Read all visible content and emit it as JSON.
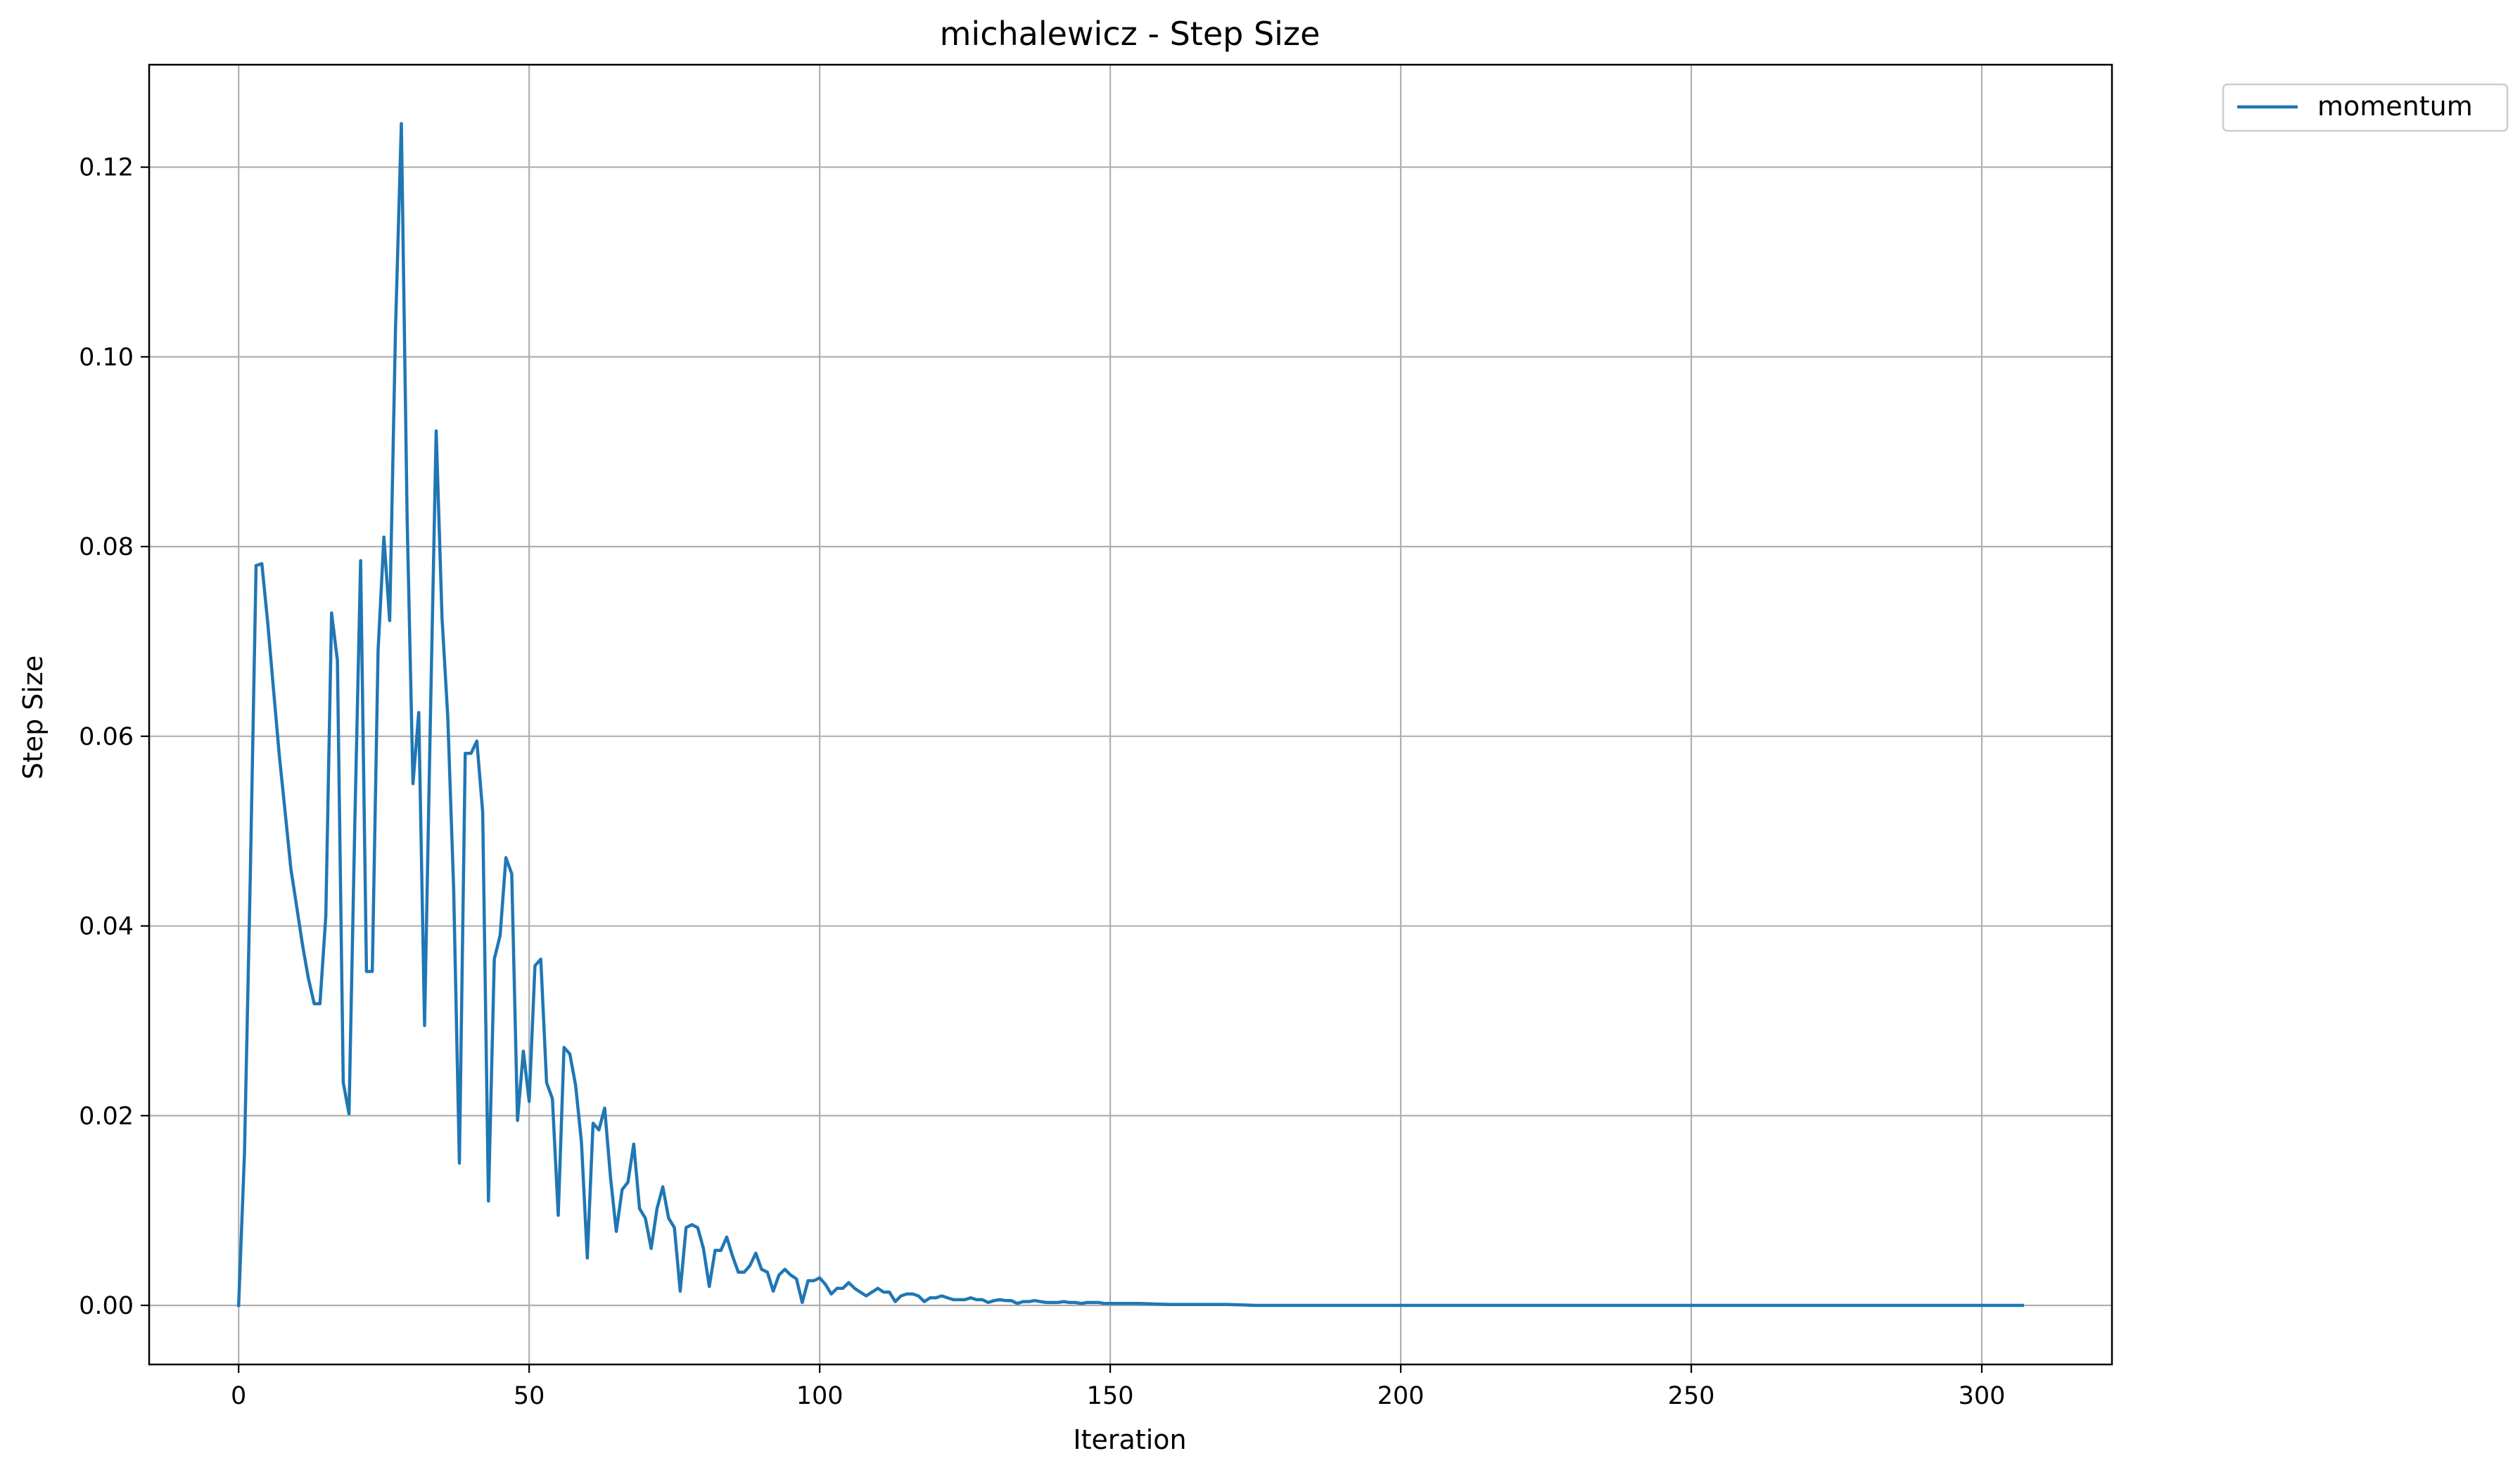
{
  "chart_data": {
    "type": "line",
    "title": "michalewicz - Step Size",
    "xlabel": "Iteration",
    "ylabel": "Step Size",
    "xlim": [
      -15.4,
      322.4
    ],
    "ylim": [
      -0.00623,
      0.1308
    ],
    "xticks": [
      0,
      50,
      100,
      150,
      200,
      250,
      300
    ],
    "xtick_labels": [
      "0",
      "50",
      "100",
      "150",
      "200",
      "250",
      "300"
    ],
    "yticks": [
      0.0,
      0.02,
      0.04,
      0.06,
      0.08,
      0.1,
      0.12
    ],
    "ytick_labels": [
      "0.00",
      "0.02",
      "0.04",
      "0.06",
      "0.08",
      "0.10",
      "0.12"
    ],
    "grid": true,
    "legend": {
      "placement": "outside-top-right",
      "entries": [
        "momentum"
      ]
    },
    "series": [
      {
        "name": "momentum",
        "color": "#1f77b4",
        "x": [
          0,
          1,
          2,
          3,
          4,
          5,
          6,
          7,
          8,
          9,
          10,
          11,
          12,
          13,
          14,
          15,
          16,
          17,
          18,
          19,
          20,
          21,
          22,
          23,
          24,
          25,
          26,
          27,
          28,
          29,
          30,
          31,
          32,
          33,
          34,
          35,
          36,
          37,
          38,
          39,
          40,
          41,
          42,
          43,
          44,
          45,
          46,
          47,
          48,
          49,
          50,
          51,
          52,
          53,
          54,
          55,
          56,
          57,
          58,
          59,
          60,
          61,
          62,
          63,
          64,
          65,
          66,
          67,
          68,
          69,
          70,
          71,
          72,
          73,
          74,
          75,
          76,
          77,
          78,
          79,
          80,
          81,
          82,
          83,
          84,
          85,
          86,
          87,
          88,
          89,
          90,
          91,
          92,
          93,
          94,
          95,
          96,
          97,
          98,
          99,
          100,
          101,
          102,
          103,
          104,
          105,
          106,
          107,
          108,
          109,
          110,
          111,
          112,
          113,
          114,
          115,
          116,
          117,
          118,
          119,
          120,
          121,
          122,
          123,
          124,
          125,
          126,
          127,
          128,
          129,
          130,
          131,
          132,
          133,
          134,
          135,
          136,
          137,
          138,
          139,
          140,
          141,
          142,
          143,
          144,
          145,
          146,
          147,
          148,
          149,
          150,
          155,
          160,
          165,
          170,
          175,
          180,
          190,
          200,
          250,
          307
        ],
        "y": [
          0.0,
          0.016,
          0.045,
          0.078,
          0.0782,
          0.072,
          0.065,
          0.058,
          0.052,
          0.046,
          0.042,
          0.038,
          0.0345,
          0.0318,
          0.0318,
          0.041,
          0.073,
          0.068,
          0.0235,
          0.0202,
          0.051,
          0.0785,
          0.0352,
          0.0352,
          0.069,
          0.081,
          0.0722,
          0.103,
          0.1246,
          0.083,
          0.055,
          0.0625,
          0.0295,
          0.062,
          0.0922,
          0.0725,
          0.062,
          0.044,
          0.015,
          0.0582,
          0.0582,
          0.0595,
          0.052,
          0.011,
          0.0365,
          0.039,
          0.0472,
          0.0455,
          0.0195,
          0.0268,
          0.0215,
          0.0358,
          0.0365,
          0.0235,
          0.0218,
          0.0095,
          0.0272,
          0.0265,
          0.0232,
          0.0172,
          0.005,
          0.0192,
          0.0185,
          0.0208,
          0.0135,
          0.0078,
          0.0122,
          0.013,
          0.017,
          0.0102,
          0.0092,
          0.006,
          0.0102,
          0.0125,
          0.0092,
          0.0082,
          0.0015,
          0.0082,
          0.0085,
          0.0082,
          0.006,
          0.002,
          0.0058,
          0.0058,
          0.0072,
          0.0052,
          0.0035,
          0.0035,
          0.0042,
          0.0055,
          0.0038,
          0.0035,
          0.0015,
          0.0032,
          0.0038,
          0.0032,
          0.0028,
          0.0003,
          0.0026,
          0.0026,
          0.0029,
          0.0022,
          0.0012,
          0.0018,
          0.0018,
          0.0024,
          0.0018,
          0.0014,
          0.001,
          0.0014,
          0.0018,
          0.0014,
          0.0014,
          0.0004,
          0.001,
          0.0012,
          0.0012,
          0.001,
          0.0004,
          0.0008,
          0.0008,
          0.001,
          0.0008,
          0.0006,
          0.0006,
          0.0006,
          0.0008,
          0.0006,
          0.0006,
          0.0003,
          0.0005,
          0.0006,
          0.0005,
          0.0005,
          0.0002,
          0.0004,
          0.0004,
          0.0005,
          0.0004,
          0.0003,
          0.0003,
          0.0003,
          0.0004,
          0.0003,
          0.0003,
          0.0002,
          0.0003,
          0.0003,
          0.0003,
          0.0002,
          0.0002,
          0.0002,
          0.0001,
          0.0001,
          0.0001,
          0.0,
          0.0,
          0.0,
          0.0,
          0.0,
          0.0
        ]
      }
    ]
  }
}
